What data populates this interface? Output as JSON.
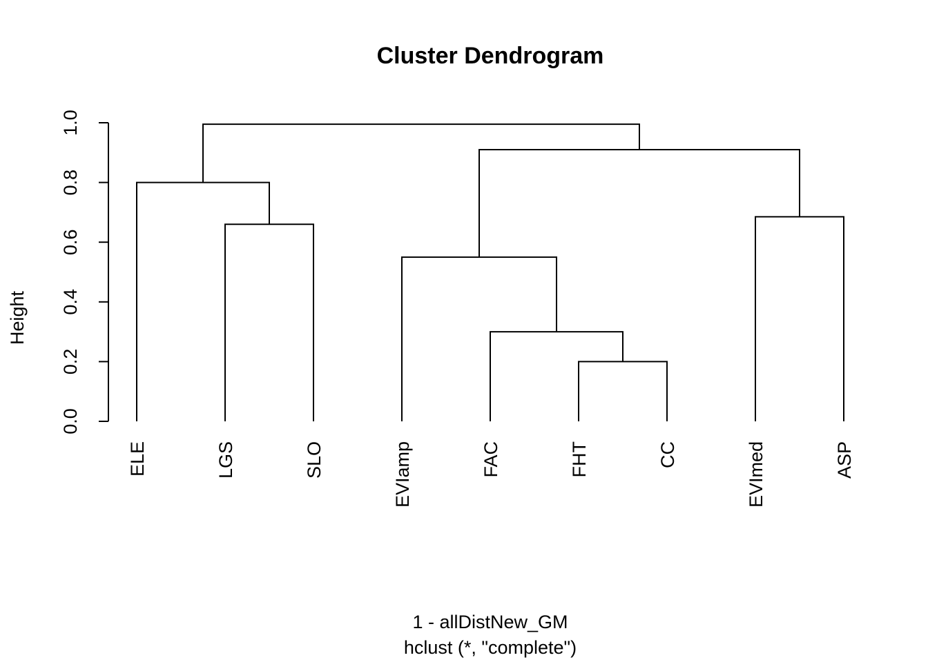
{
  "chart_data": {
    "type": "dendrogram",
    "title": "Cluster Dendrogram",
    "ylabel": "Height",
    "xlabel": "1 - allDistNew_GM",
    "sublabel": "hclust (*, \"complete\")",
    "ylim": [
      0,
      1.0
    ],
    "yticks": [
      0.0,
      0.2,
      0.4,
      0.6,
      0.8,
      1.0
    ],
    "ytick_labels": [
      "0.0",
      "0.2",
      "0.4",
      "0.6",
      "0.8",
      "1.0"
    ],
    "leaves": [
      "ELE",
      "LGS",
      "SLO",
      "EVIamp",
      "FAC",
      "FHT",
      "CC",
      "EVImed",
      "ASP"
    ],
    "merges": [
      {
        "left": "FHT",
        "right": "CC",
        "height": 0.2
      },
      {
        "left": "FAC",
        "right": "FHT+CC",
        "height": 0.3
      },
      {
        "left": "EVIamp",
        "right": "FAC+FHT+CC",
        "height": 0.55
      },
      {
        "left": "LGS",
        "right": "SLO",
        "height": 0.66
      },
      {
        "left": "EVImed",
        "right": "ASP",
        "height": 0.685
      },
      {
        "left": "ELE",
        "right": "LGS+SLO",
        "height": 0.8
      },
      {
        "left": "EVIamp+FAC+FHT+CC",
        "right": "EVImed+ASP",
        "height": 0.91
      },
      {
        "left": "ELE+LGS+SLO",
        "right": "EVIamp+FAC+FHT+CC+EVImed+ASP",
        "height": 0.995
      }
    ]
  }
}
